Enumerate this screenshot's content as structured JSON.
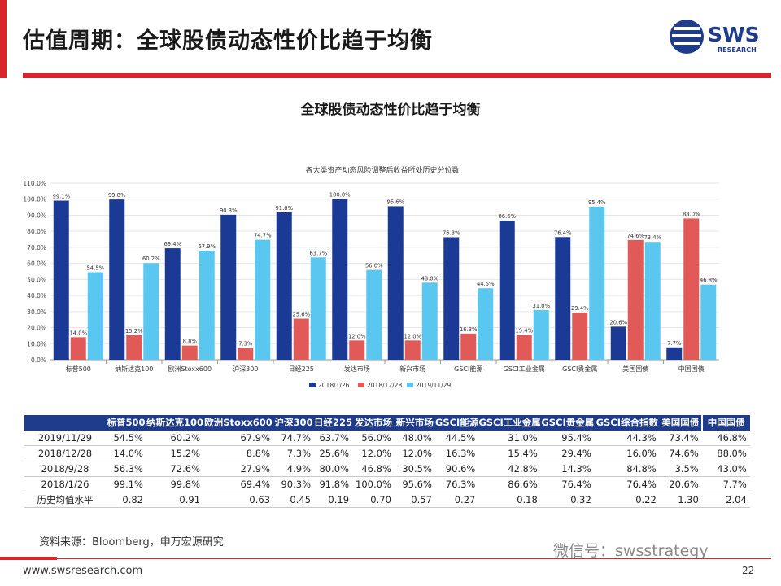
{
  "slide": {
    "title": "估值周期：全球股债动态性价比趋于均衡",
    "logo_text": "SWS",
    "logo_sub": "RESEARCH",
    "source": "资料来源：Bloomberg，申万宏源研究",
    "wechat": "微信号：swsstrategy",
    "url": "www.swsresearch.com",
    "page_number": "22"
  },
  "colors": {
    "red": "#d9262c",
    "navy": "#1f3b8c",
    "series1": "#1a3a96",
    "series2": "#e15a57",
    "series3": "#59c7ef"
  },
  "chart_data": {
    "type": "bar",
    "title": "全球股债动态性价比趋于均衡",
    "subtitle": "各大类资产动态风险调整后收益所处历史分位数",
    "categories": [
      "标普500",
      "纳斯达克100",
      "欧洲Stoxx600",
      "沪深300",
      "日经225",
      "发达市场",
      "新兴市场",
      "GSCI能源",
      "GSCI工业金属",
      "GSCI贵金属",
      "美国国债",
      "中国国债"
    ],
    "series": [
      {
        "name": "2018/1/26",
        "values": [
          99.1,
          99.8,
          69.4,
          90.3,
          91.8,
          100.0,
          95.6,
          76.3,
          86.6,
          76.4,
          20.6,
          7.7
        ]
      },
      {
        "name": "2018/12/28",
        "values": [
          14.0,
          15.2,
          8.8,
          7.3,
          25.6,
          12.0,
          12.0,
          16.3,
          15.4,
          29.4,
          74.6,
          88.0
        ]
      },
      {
        "name": "2019/11/29",
        "values": [
          54.5,
          60.2,
          67.9,
          74.7,
          63.7,
          56.0,
          48.0,
          44.5,
          31.0,
          95.4,
          73.4,
          46.8
        ]
      }
    ],
    "ylim": [
      0,
      110
    ],
    "yticks": [
      0,
      10,
      20,
      30,
      40,
      50,
      60,
      70,
      80,
      90,
      100,
      110
    ],
    "value_format": "percent_1dp",
    "legend_position": "bottom"
  },
  "table": {
    "headers": [
      "",
      "标普500",
      "纳斯达克100",
      "欧洲Stoxx600",
      "沪深300",
      "日经225",
      "发达市场",
      "新兴市场",
      "GSCI能源",
      "GSCI工业金属",
      "GSCI贵金属",
      "GSCI综合指数",
      "美国国债",
      "中国国债"
    ],
    "rows": [
      [
        "2019/11/29",
        "54.5%",
        "60.2%",
        "67.9%",
        "74.7%",
        "63.7%",
        "56.0%",
        "48.0%",
        "44.5%",
        "31.0%",
        "95.4%",
        "44.3%",
        "73.4%",
        "46.8%"
      ],
      [
        "2018/12/28",
        "14.0%",
        "15.2%",
        "8.8%",
        "7.3%",
        "25.6%",
        "12.0%",
        "12.0%",
        "16.3%",
        "15.4%",
        "29.4%",
        "16.0%",
        "74.6%",
        "88.0%"
      ],
      [
        "2018/9/28",
        "56.3%",
        "72.6%",
        "27.9%",
        "4.9%",
        "80.0%",
        "46.8%",
        "30.5%",
        "90.6%",
        "42.8%",
        "14.3%",
        "84.8%",
        "3.5%",
        "43.0%"
      ],
      [
        "2018/1/26",
        "99.1%",
        "99.8%",
        "69.4%",
        "90.3%",
        "91.8%",
        "100.0%",
        "95.6%",
        "76.3%",
        "86.6%",
        "76.4%",
        "76.4%",
        "20.6%",
        "7.7%"
      ],
      [
        "历史均值水平",
        "0.82",
        "0.91",
        "0.63",
        "0.45",
        "0.19",
        "0.70",
        "0.57",
        "0.27",
        "0.18",
        "0.32",
        "0.22",
        "1.30",
        "2.04"
      ]
    ]
  }
}
